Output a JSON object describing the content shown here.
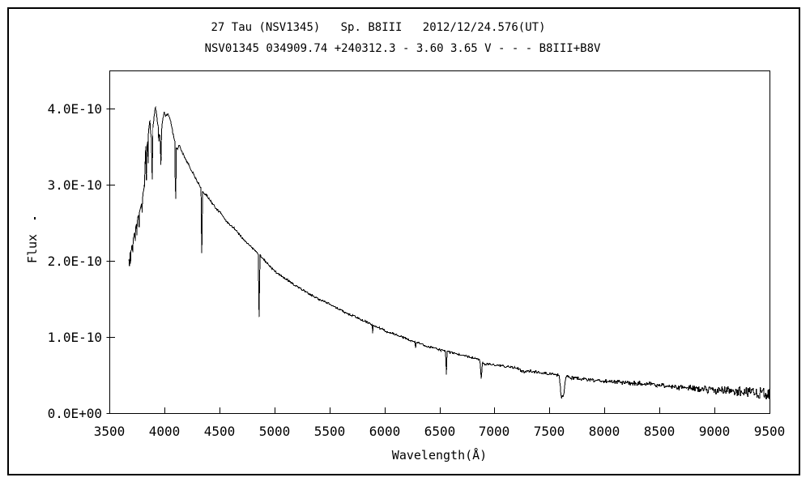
{
  "figure": {
    "background": "#ffffff",
    "border_color": "#000000"
  },
  "marks": {
    "stray_dot": "."
  },
  "chart_data": {
    "type": "line",
    "title": "27 Tau (NSV1345)   Sp. B8III   2012/12/24.576(UT)",
    "subtitle": "NSV01345 034909.74 +240312.3 - 3.60 3.65 V - - - B8III+B8V",
    "xlabel": "Wavelength(Å)",
    "ylabel": "Flux",
    "grid": false,
    "legend": "none",
    "line_color": "#000000",
    "xlim": [
      3500,
      9500
    ],
    "ylim_e10": [
      0,
      4.5
    ],
    "x_ticks": [
      3500,
      4000,
      4500,
      5000,
      5500,
      6000,
      6500,
      7000,
      7500,
      8000,
      8500,
      9000,
      9500
    ],
    "y_ticks": [
      {
        "v": 0,
        "label": "0.0E+00"
      },
      {
        "v": 1,
        "label": "1.0E-10"
      },
      {
        "v": 2,
        "label": "2.0E-10"
      },
      {
        "v": 3,
        "label": "3.0E-10"
      },
      {
        "v": 4,
        "label": "4.0E-10"
      }
    ],
    "flux_unit_scale": "1e-10",
    "wavelength_range_observed": [
      3676,
      9500
    ],
    "continuum": [
      [
        3676,
        2.02
      ],
      [
        3686,
        2.1
      ],
      [
        3700,
        2.16
      ],
      [
        3714,
        2.27
      ],
      [
        3728,
        2.36
      ],
      [
        3742,
        2.46
      ],
      [
        3758,
        2.56
      ],
      [
        3774,
        2.64
      ],
      [
        3790,
        2.74
      ],
      [
        3806,
        2.88
      ],
      [
        3818,
        3.02
      ],
      [
        3826,
        3.32
      ],
      [
        3833,
        3.63
      ],
      [
        3841,
        3.52
      ],
      [
        3850,
        3.6
      ],
      [
        3859,
        3.74
      ],
      [
        3867,
        3.86
      ],
      [
        3875,
        3.7
      ],
      [
        3883,
        3.6
      ],
      [
        3894,
        3.74
      ],
      [
        3906,
        3.9
      ],
      [
        3918,
        4.04
      ],
      [
        3929,
        3.92
      ],
      [
        3942,
        3.78
      ],
      [
        3956,
        3.64
      ],
      [
        3972,
        3.7
      ],
      [
        3984,
        3.86
      ],
      [
        3998,
        3.95
      ],
      [
        4012,
        3.9
      ],
      [
        4030,
        3.94
      ],
      [
        4048,
        3.89
      ],
      [
        4066,
        3.77
      ],
      [
        4084,
        3.64
      ],
      [
        4102,
        3.52
      ],
      [
        4120,
        3.47
      ],
      [
        4136,
        3.52
      ],
      [
        4156,
        3.45
      ],
      [
        4186,
        3.36
      ],
      [
        4220,
        3.27
      ],
      [
        4256,
        3.17
      ],
      [
        4292,
        3.07
      ],
      [
        4322,
        2.99
      ],
      [
        4356,
        2.9
      ],
      [
        4392,
        2.85
      ],
      [
        4432,
        2.77
      ],
      [
        4472,
        2.69
      ],
      [
        4512,
        2.64
      ],
      [
        4552,
        2.55
      ],
      [
        4592,
        2.48
      ],
      [
        4632,
        2.44
      ],
      [
        4672,
        2.37
      ],
      [
        4712,
        2.3
      ],
      [
        4752,
        2.24
      ],
      [
        4792,
        2.18
      ],
      [
        4828,
        2.14
      ],
      [
        4864,
        2.09
      ],
      [
        4902,
        2.03
      ],
      [
        4948,
        1.95
      ],
      [
        5000,
        1.87
      ],
      [
        5060,
        1.81
      ],
      [
        5120,
        1.75
      ],
      [
        5180,
        1.69
      ],
      [
        5240,
        1.64
      ],
      [
        5300,
        1.585
      ],
      [
        5360,
        1.535
      ],
      [
        5420,
        1.49
      ],
      [
        5480,
        1.455
      ],
      [
        5540,
        1.41
      ],
      [
        5600,
        1.36
      ],
      [
        5660,
        1.32
      ],
      [
        5720,
        1.28
      ],
      [
        5780,
        1.24
      ],
      [
        5840,
        1.2
      ],
      [
        5900,
        1.16
      ],
      [
        5960,
        1.12
      ],
      [
        6020,
        1.08
      ],
      [
        6080,
        1.05
      ],
      [
        6140,
        1.015
      ],
      [
        6200,
        0.985
      ],
      [
        6260,
        0.95
      ],
      [
        6320,
        0.92
      ],
      [
        6380,
        0.89
      ],
      [
        6440,
        0.865
      ],
      [
        6500,
        0.84
      ],
      [
        6563,
        0.815
      ],
      [
        6620,
        0.795
      ],
      [
        6680,
        0.775
      ],
      [
        6740,
        0.755
      ],
      [
        6800,
        0.735
      ],
      [
        6850,
        0.715
      ],
      [
        6915,
        0.65
      ],
      [
        6980,
        0.64
      ],
      [
        7040,
        0.63
      ],
      [
        7100,
        0.62
      ],
      [
        7160,
        0.605
      ],
      [
        7220,
        0.59
      ],
      [
        7280,
        0.57
      ],
      [
        7340,
        0.555
      ],
      [
        7400,
        0.54
      ],
      [
        7460,
        0.53
      ],
      [
        7520,
        0.52
      ],
      [
        7580,
        0.505
      ],
      [
        7640,
        0.49
      ],
      [
        7700,
        0.47
      ],
      [
        7760,
        0.46
      ],
      [
        7820,
        0.45
      ],
      [
        7880,
        0.44
      ],
      [
        7940,
        0.43
      ],
      [
        8000,
        0.425
      ],
      [
        8060,
        0.415
      ],
      [
        8120,
        0.41
      ],
      [
        8180,
        0.405
      ],
      [
        8240,
        0.4
      ],
      [
        8300,
        0.395
      ],
      [
        8360,
        0.39
      ],
      [
        8420,
        0.388
      ],
      [
        8480,
        0.376
      ],
      [
        8540,
        0.37
      ],
      [
        8600,
        0.36
      ],
      [
        8660,
        0.35
      ],
      [
        8720,
        0.34
      ],
      [
        8780,
        0.335
      ],
      [
        8840,
        0.325
      ],
      [
        8900,
        0.32
      ],
      [
        8960,
        0.31
      ],
      [
        9020,
        0.305
      ],
      [
        9080,
        0.3
      ],
      [
        9140,
        0.295
      ],
      [
        9200,
        0.29
      ],
      [
        9260,
        0.285
      ],
      [
        9320,
        0.28
      ],
      [
        9380,
        0.275
      ],
      [
        9440,
        0.27
      ],
      [
        9500,
        0.265
      ]
    ],
    "absorption_lines": [
      [
        3682,
        1.93,
        5
      ],
      [
        3692,
        1.96,
        5
      ],
      [
        3712,
        2.13,
        5
      ],
      [
        3734,
        2.26,
        5
      ],
      [
        3750,
        2.35,
        4
      ],
      [
        3770,
        2.45,
        5
      ],
      [
        3798,
        2.64,
        5
      ],
      [
        3820,
        2.98,
        4
      ],
      [
        3836,
        3.06,
        6
      ],
      [
        3852,
        3.3,
        4
      ],
      [
        3889,
        3.08,
        7
      ],
      [
        3948,
        3.58,
        4
      ],
      [
        3968,
        3.27,
        7
      ],
      [
        4102,
        2.82,
        8
      ],
      [
        4340,
        2.1,
        8
      ],
      [
        4861,
        1.26,
        8
      ],
      [
        5893,
        1.05,
        5
      ],
      [
        6283,
        0.855,
        6
      ],
      [
        6563,
        0.525,
        7
      ],
      [
        6880,
        0.462,
        13
      ],
      [
        7270,
        0.545,
        55
      ],
      [
        7618,
        0.215,
        30,
        10
      ]
    ],
    "noise_profile": [
      [
        3676,
        0.012
      ],
      [
        4500,
        0.011
      ],
      [
        5500,
        0.011
      ],
      [
        6500,
        0.012
      ],
      [
        7100,
        0.013
      ],
      [
        7600,
        0.018
      ],
      [
        8000,
        0.022
      ],
      [
        8400,
        0.03
      ],
      [
        8800,
        0.04
      ],
      [
        9100,
        0.05
      ],
      [
        9300,
        0.065
      ],
      [
        9500,
        0.08
      ]
    ],
    "noise_seed": 7
  }
}
